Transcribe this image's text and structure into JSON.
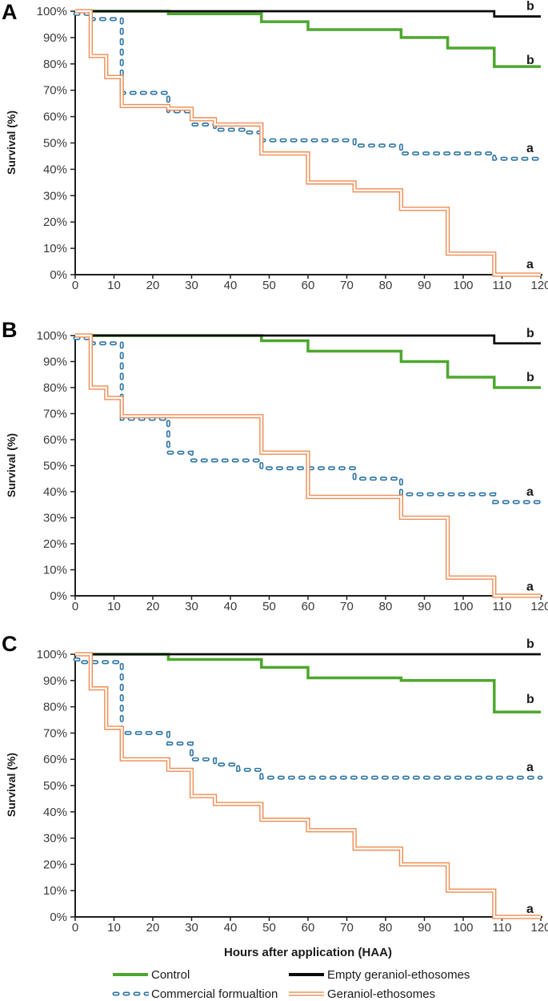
{
  "colors": {
    "control": "#4EA72E",
    "empty": "#0a0a0a",
    "commercial": "#2E75A6",
    "geraniol": "#F08B51",
    "axis": "#1f1f1f",
    "tick_text": "#3a3a3a"
  },
  "x_axis": {
    "label": "Hours after application (HAA)",
    "min": 0,
    "max": 120,
    "tick_step": 10,
    "tick_labels": [
      "0",
      "10",
      "20",
      "30",
      "40",
      "50",
      "60",
      "70",
      "80",
      "90",
      "100",
      "110",
      "120"
    ]
  },
  "y_axis": {
    "label": "Survival (%)",
    "min": 0,
    "max": 100,
    "tick_step": 10,
    "tick_labels": [
      "0%",
      "10%",
      "20%",
      "30%",
      "40%",
      "50%",
      "60%",
      "70%",
      "80%",
      "90%",
      "100%"
    ]
  },
  "legend": {
    "items": [
      {
        "key": "control",
        "label": "Control"
      },
      {
        "key": "empty",
        "label": "Empty geraniol-ethosomes"
      },
      {
        "key": "commercial",
        "label": "Commercial formualtion"
      },
      {
        "key": "geraniol",
        "label": "Geraniol-ethosomes"
      }
    ]
  },
  "chart_data": [
    {
      "panel": "A",
      "type": "line",
      "step": true,
      "xlabel": "Hours after application (HAA)",
      "ylabel": "Survival (%)",
      "xlim": [
        0,
        120
      ],
      "ylim": [
        0,
        100
      ],
      "x_end": 120,
      "series": [
        {
          "name": "Empty geraniol-ethosomes",
          "key": "empty",
          "sig_label": "b",
          "sig_label_pct": 102,
          "levels": [
            [
              0,
              100
            ],
            [
              108,
              98
            ]
          ]
        },
        {
          "name": "Control",
          "key": "control",
          "sig_label": "b",
          "sig_label_pct": 81.5,
          "levels": [
            [
              0,
              100
            ],
            [
              24,
              99
            ],
            [
              48,
              96
            ],
            [
              60,
              93
            ],
            [
              84,
              90
            ],
            [
              96,
              86
            ],
            [
              108,
              79
            ]
          ]
        },
        {
          "name": "Commercial formualtion",
          "key": "commercial",
          "sig_label": "a",
          "sig_label_pct": 48,
          "levels": [
            [
              0,
              99
            ],
            [
              4,
              97
            ],
            [
              12,
              69
            ],
            [
              24,
              62
            ],
            [
              30,
              57
            ],
            [
              36,
              55
            ],
            [
              44,
              54
            ],
            [
              48,
              51
            ],
            [
              72,
              49
            ],
            [
              84,
              46
            ],
            [
              108,
              44
            ]
          ]
        },
        {
          "name": "Geraniol-ethosomes",
          "key": "geraniol",
          "sig_label": "a",
          "sig_label_pct": 4,
          "levels": [
            [
              0,
              100
            ],
            [
              4,
              83
            ],
            [
              8,
              75
            ],
            [
              12,
              64
            ],
            [
              24,
              63
            ],
            [
              30,
              59
            ],
            [
              36,
              57
            ],
            [
              48,
              46
            ],
            [
              60,
              35
            ],
            [
              72,
              32
            ],
            [
              84,
              25
            ],
            [
              96,
              8
            ],
            [
              108,
              0
            ]
          ]
        }
      ]
    },
    {
      "panel": "B",
      "type": "line",
      "step": true,
      "xlabel": "Hours after application (HAA)",
      "ylabel": "Survival (%)",
      "xlim": [
        0,
        120
      ],
      "ylim": [
        0,
        100
      ],
      "x_end": 120,
      "series": [
        {
          "name": "Empty geraniol-ethosomes",
          "key": "empty",
          "sig_label": "b",
          "sig_label_pct": 101,
          "levels": [
            [
              0,
              100
            ],
            [
              108,
              97
            ]
          ]
        },
        {
          "name": "Control",
          "key": "control",
          "sig_label": "b",
          "sig_label_pct": 84,
          "levels": [
            [
              0,
              100
            ],
            [
              48,
              98
            ],
            [
              60,
              94
            ],
            [
              84,
              90
            ],
            [
              96,
              84
            ],
            [
              108,
              80
            ]
          ]
        },
        {
          "name": "Commercial formualtion",
          "key": "commercial",
          "sig_label": "a",
          "sig_label_pct": 40,
          "levels": [
            [
              0,
              99
            ],
            [
              4,
              97
            ],
            [
              12,
              68
            ],
            [
              24,
              55
            ],
            [
              30,
              52
            ],
            [
              48,
              49
            ],
            [
              72,
              45
            ],
            [
              84,
              39
            ],
            [
              108,
              36
            ]
          ]
        },
        {
          "name": "Geraniol-ethosomes",
          "key": "geraniol",
          "sig_label": "a",
          "sig_label_pct": 3.5,
          "levels": [
            [
              0,
              100
            ],
            [
              4,
              80
            ],
            [
              8,
              76
            ],
            [
              12,
              69
            ],
            [
              48,
              55
            ],
            [
              60,
              38
            ],
            [
              84,
              30
            ],
            [
              96,
              7
            ],
            [
              108,
              0
            ]
          ]
        }
      ]
    },
    {
      "panel": "C",
      "type": "line",
      "step": true,
      "xlabel": "Hours after application (HAA)",
      "ylabel": "Survival (%)",
      "xlim": [
        0,
        120
      ],
      "ylim": [
        0,
        100
      ],
      "x_end": 120,
      "series": [
        {
          "name": "Empty geraniol-ethosomes",
          "key": "empty",
          "sig_label": "b",
          "sig_label_pct": 104,
          "levels": [
            [
              0,
              100
            ]
          ]
        },
        {
          "name": "Control",
          "key": "control",
          "sig_label": "b",
          "sig_label_pct": 83,
          "levels": [
            [
              0,
              100
            ],
            [
              24,
              98
            ],
            [
              48,
              95
            ],
            [
              60,
              91
            ],
            [
              84,
              90
            ],
            [
              108,
              78
            ]
          ]
        },
        {
          "name": "Commercial formualtion",
          "key": "commercial",
          "sig_label": "a",
          "sig_label_pct": 57,
          "levels": [
            [
              0,
              98
            ],
            [
              2,
              97
            ],
            [
              12,
              70
            ],
            [
              24,
              66
            ],
            [
              30,
              60
            ],
            [
              36,
              58
            ],
            [
              42,
              56
            ],
            [
              48,
              53
            ]
          ]
        },
        {
          "name": "Geraniol-ethosomes",
          "key": "geraniol",
          "sig_label": "a",
          "sig_label_pct": 3,
          "levels": [
            [
              0,
              100
            ],
            [
              4,
              87
            ],
            [
              8,
              72
            ],
            [
              12,
              60
            ],
            [
              24,
              56
            ],
            [
              30,
              46
            ],
            [
              36,
              43
            ],
            [
              48,
              37
            ],
            [
              60,
              33
            ],
            [
              72,
              26
            ],
            [
              84,
              20
            ],
            [
              96,
              10
            ],
            [
              108,
              0
            ]
          ]
        }
      ]
    }
  ]
}
